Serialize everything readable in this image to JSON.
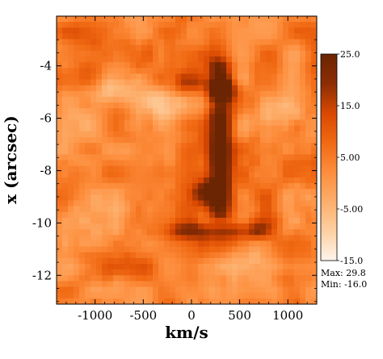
{
  "chart_data": {
    "type": "heatmap",
    "title": "",
    "xlabel": "km/s",
    "ylabel": "x (arcsec)",
    "xlim": [
      -1400,
      1300
    ],
    "ylim": [
      -13.1,
      -2.1
    ],
    "x_ticks": [
      -1000,
      -500,
      0,
      500,
      1000
    ],
    "x_tick_labels": [
      "-1000",
      "-500",
      "0",
      "500",
      "1000"
    ],
    "y_ticks": [
      -4,
      -6,
      -8,
      -10,
      -12
    ],
    "y_tick_labels": [
      "-4",
      "-6",
      "-8",
      "-10",
      "-12"
    ],
    "colorbar": {
      "ticks": [
        25.0,
        15.0,
        5.0,
        -5.0,
        -15.0
      ],
      "tick_labels": [
        "25.0",
        "15.0",
        "5.00",
        "-5.00",
        "-15.0"
      ],
      "range": [
        -15.0,
        25.0
      ],
      "colors": [
        "#fff5eb",
        "#fdd0a2",
        "#fdae6b",
        "#fd8d3c",
        "#f16913",
        "#d94801",
        "#8c2d04",
        "#6b2502"
      ]
    },
    "max_text": "Max:  29.8",
    "min_text": "Min: -16.0",
    "grid": false,
    "features": [
      {
        "type": "column",
        "x": 300,
        "y_range": [
          -4.1,
          -9.6
        ],
        "intensity": 20
      },
      {
        "type": "blob",
        "x": 320,
        "y": -4.9,
        "intensity": 24
      },
      {
        "type": "blob",
        "x": 0,
        "y": -4.6,
        "intensity": 16
      },
      {
        "type": "blob",
        "x": 150,
        "y": -8.8,
        "intensity": 17
      },
      {
        "type": "band",
        "x_range": [
          -100,
          700
        ],
        "y": -10.3,
        "intensity": 12
      },
      {
        "type": "bright",
        "x": -800,
        "y": -5.0,
        "intensity": -12
      },
      {
        "type": "bright",
        "x": -400,
        "y": -5.4,
        "intensity": -10
      },
      {
        "type": "bright",
        "x": 900,
        "y": -6.0,
        "intensity": -9
      },
      {
        "type": "bright",
        "x": -1100,
        "y": -10.0,
        "intensity": -8
      },
      {
        "type": "bright",
        "x": 700,
        "y": -11.5,
        "intensity": -7
      }
    ]
  }
}
